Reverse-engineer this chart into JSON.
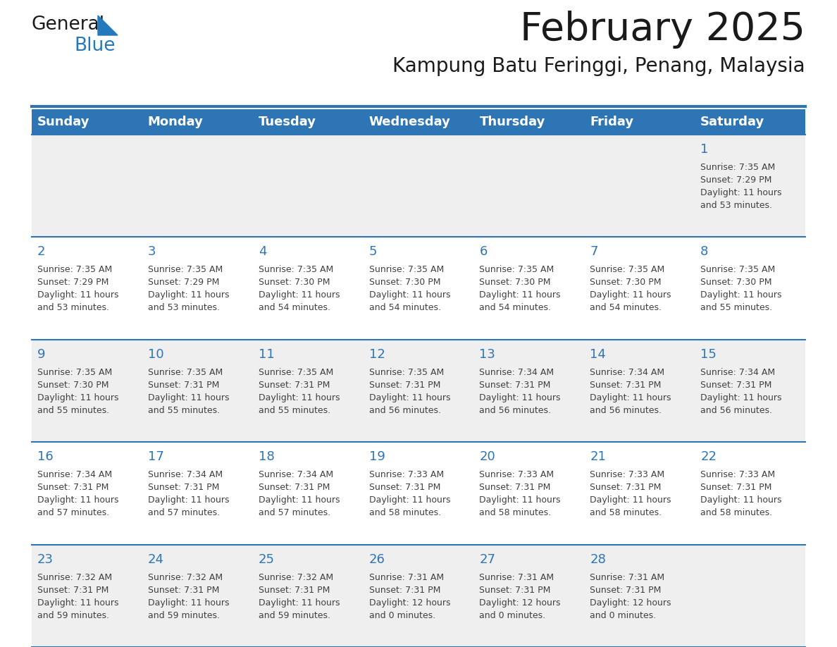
{
  "title": "February 2025",
  "subtitle": "Kampung Batu Feringgi, Penang, Malaysia",
  "header_bg_color": "#2E75B6",
  "header_text_color": "#FFFFFF",
  "header_days": [
    "Sunday",
    "Monday",
    "Tuesday",
    "Wednesday",
    "Thursday",
    "Friday",
    "Saturday"
  ],
  "row_bg_colors": [
    "#EFEFEF",
    "#FFFFFF",
    "#EFEFEF",
    "#FFFFFF",
    "#EFEFEF"
  ],
  "separator_color": "#2E75B6",
  "day_number_color": "#2E75B6",
  "info_text_color": "#404040",
  "bg_color": "#FFFFFF",
  "calendar": [
    [
      {
        "day": "",
        "sunrise": "",
        "sunset": "",
        "daylight_line1": "",
        "daylight_line2": ""
      },
      {
        "day": "",
        "sunrise": "",
        "sunset": "",
        "daylight_line1": "",
        "daylight_line2": ""
      },
      {
        "day": "",
        "sunrise": "",
        "sunset": "",
        "daylight_line1": "",
        "daylight_line2": ""
      },
      {
        "day": "",
        "sunrise": "",
        "sunset": "",
        "daylight_line1": "",
        "daylight_line2": ""
      },
      {
        "day": "",
        "sunrise": "",
        "sunset": "",
        "daylight_line1": "",
        "daylight_line2": ""
      },
      {
        "day": "",
        "sunrise": "",
        "sunset": "",
        "daylight_line1": "",
        "daylight_line2": ""
      },
      {
        "day": "1",
        "sunrise": "Sunrise: 7:35 AM",
        "sunset": "Sunset: 7:29 PM",
        "daylight_line1": "Daylight: 11 hours",
        "daylight_line2": "and 53 minutes."
      }
    ],
    [
      {
        "day": "2",
        "sunrise": "Sunrise: 7:35 AM",
        "sunset": "Sunset: 7:29 PM",
        "daylight_line1": "Daylight: 11 hours",
        "daylight_line2": "and 53 minutes."
      },
      {
        "day": "3",
        "sunrise": "Sunrise: 7:35 AM",
        "sunset": "Sunset: 7:29 PM",
        "daylight_line1": "Daylight: 11 hours",
        "daylight_line2": "and 53 minutes."
      },
      {
        "day": "4",
        "sunrise": "Sunrise: 7:35 AM",
        "sunset": "Sunset: 7:30 PM",
        "daylight_line1": "Daylight: 11 hours",
        "daylight_line2": "and 54 minutes."
      },
      {
        "day": "5",
        "sunrise": "Sunrise: 7:35 AM",
        "sunset": "Sunset: 7:30 PM",
        "daylight_line1": "Daylight: 11 hours",
        "daylight_line2": "and 54 minutes."
      },
      {
        "day": "6",
        "sunrise": "Sunrise: 7:35 AM",
        "sunset": "Sunset: 7:30 PM",
        "daylight_line1": "Daylight: 11 hours",
        "daylight_line2": "and 54 minutes."
      },
      {
        "day": "7",
        "sunrise": "Sunrise: 7:35 AM",
        "sunset": "Sunset: 7:30 PM",
        "daylight_line1": "Daylight: 11 hours",
        "daylight_line2": "and 54 minutes."
      },
      {
        "day": "8",
        "sunrise": "Sunrise: 7:35 AM",
        "sunset": "Sunset: 7:30 PM",
        "daylight_line1": "Daylight: 11 hours",
        "daylight_line2": "and 55 minutes."
      }
    ],
    [
      {
        "day": "9",
        "sunrise": "Sunrise: 7:35 AM",
        "sunset": "Sunset: 7:30 PM",
        "daylight_line1": "Daylight: 11 hours",
        "daylight_line2": "and 55 minutes."
      },
      {
        "day": "10",
        "sunrise": "Sunrise: 7:35 AM",
        "sunset": "Sunset: 7:31 PM",
        "daylight_line1": "Daylight: 11 hours",
        "daylight_line2": "and 55 minutes."
      },
      {
        "day": "11",
        "sunrise": "Sunrise: 7:35 AM",
        "sunset": "Sunset: 7:31 PM",
        "daylight_line1": "Daylight: 11 hours",
        "daylight_line2": "and 55 minutes."
      },
      {
        "day": "12",
        "sunrise": "Sunrise: 7:35 AM",
        "sunset": "Sunset: 7:31 PM",
        "daylight_line1": "Daylight: 11 hours",
        "daylight_line2": "and 56 minutes."
      },
      {
        "day": "13",
        "sunrise": "Sunrise: 7:34 AM",
        "sunset": "Sunset: 7:31 PM",
        "daylight_line1": "Daylight: 11 hours",
        "daylight_line2": "and 56 minutes."
      },
      {
        "day": "14",
        "sunrise": "Sunrise: 7:34 AM",
        "sunset": "Sunset: 7:31 PM",
        "daylight_line1": "Daylight: 11 hours",
        "daylight_line2": "and 56 minutes."
      },
      {
        "day": "15",
        "sunrise": "Sunrise: 7:34 AM",
        "sunset": "Sunset: 7:31 PM",
        "daylight_line1": "Daylight: 11 hours",
        "daylight_line2": "and 56 minutes."
      }
    ],
    [
      {
        "day": "16",
        "sunrise": "Sunrise: 7:34 AM",
        "sunset": "Sunset: 7:31 PM",
        "daylight_line1": "Daylight: 11 hours",
        "daylight_line2": "and 57 minutes."
      },
      {
        "day": "17",
        "sunrise": "Sunrise: 7:34 AM",
        "sunset": "Sunset: 7:31 PM",
        "daylight_line1": "Daylight: 11 hours",
        "daylight_line2": "and 57 minutes."
      },
      {
        "day": "18",
        "sunrise": "Sunrise: 7:34 AM",
        "sunset": "Sunset: 7:31 PM",
        "daylight_line1": "Daylight: 11 hours",
        "daylight_line2": "and 57 minutes."
      },
      {
        "day": "19",
        "sunrise": "Sunrise: 7:33 AM",
        "sunset": "Sunset: 7:31 PM",
        "daylight_line1": "Daylight: 11 hours",
        "daylight_line2": "and 58 minutes."
      },
      {
        "day": "20",
        "sunrise": "Sunrise: 7:33 AM",
        "sunset": "Sunset: 7:31 PM",
        "daylight_line1": "Daylight: 11 hours",
        "daylight_line2": "and 58 minutes."
      },
      {
        "day": "21",
        "sunrise": "Sunrise: 7:33 AM",
        "sunset": "Sunset: 7:31 PM",
        "daylight_line1": "Daylight: 11 hours",
        "daylight_line2": "and 58 minutes."
      },
      {
        "day": "22",
        "sunrise": "Sunrise: 7:33 AM",
        "sunset": "Sunset: 7:31 PM",
        "daylight_line1": "Daylight: 11 hours",
        "daylight_line2": "and 58 minutes."
      }
    ],
    [
      {
        "day": "23",
        "sunrise": "Sunrise: 7:32 AM",
        "sunset": "Sunset: 7:31 PM",
        "daylight_line1": "Daylight: 11 hours",
        "daylight_line2": "and 59 minutes."
      },
      {
        "day": "24",
        "sunrise": "Sunrise: 7:32 AM",
        "sunset": "Sunset: 7:31 PM",
        "daylight_line1": "Daylight: 11 hours",
        "daylight_line2": "and 59 minutes."
      },
      {
        "day": "25",
        "sunrise": "Sunrise: 7:32 AM",
        "sunset": "Sunset: 7:31 PM",
        "daylight_line1": "Daylight: 11 hours",
        "daylight_line2": "and 59 minutes."
      },
      {
        "day": "26",
        "sunrise": "Sunrise: 7:31 AM",
        "sunset": "Sunset: 7:31 PM",
        "daylight_line1": "Daylight: 12 hours",
        "daylight_line2": "and 0 minutes."
      },
      {
        "day": "27",
        "sunrise": "Sunrise: 7:31 AM",
        "sunset": "Sunset: 7:31 PM",
        "daylight_line1": "Daylight: 12 hours",
        "daylight_line2": "and 0 minutes."
      },
      {
        "day": "28",
        "sunrise": "Sunrise: 7:31 AM",
        "sunset": "Sunset: 7:31 PM",
        "daylight_line1": "Daylight: 12 hours",
        "daylight_line2": "and 0 minutes."
      },
      {
        "day": "",
        "sunrise": "",
        "sunset": "",
        "daylight_line1": "",
        "daylight_line2": ""
      }
    ]
  ],
  "logo_text_general": "General",
  "logo_text_blue": "Blue",
  "logo_color_general": "#1A1A1A",
  "logo_color_blue": "#2479BD",
  "logo_triangle_color": "#2479BD",
  "title_color": "#1A1A1A",
  "subtitle_color": "#1A1A1A"
}
